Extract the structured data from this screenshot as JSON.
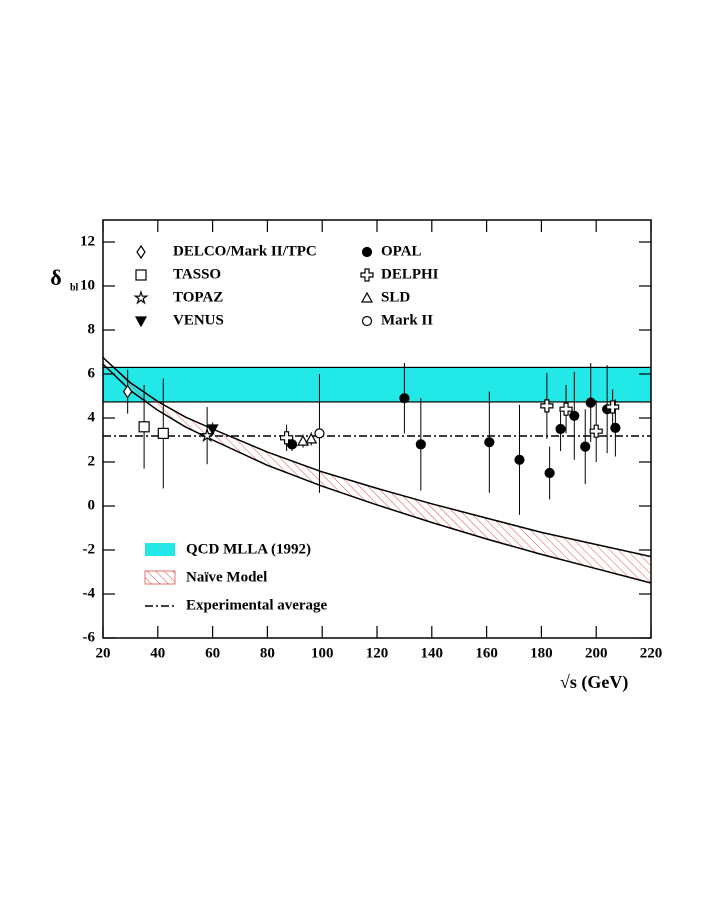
{
  "chart_data": {
    "type": "scatter",
    "x_label": "√s (GeV)",
    "y_label": "δ",
    "y_label_sub": "bl",
    "xlim": [
      20,
      220
    ],
    "ylim": [
      -6,
      13
    ],
    "xticks": [
      20,
      40,
      60,
      80,
      100,
      120,
      140,
      160,
      180,
      200,
      220
    ],
    "yticks": [
      -6,
      -4,
      -2,
      0,
      2,
      4,
      6,
      8,
      10,
      12
    ],
    "series": [
      {
        "name": "DELCO/Mark II/TPC",
        "marker": "diamond",
        "color": "#000000",
        "x": [
          29
        ],
        "values": [
          5.2
        ],
        "errors": [
          1.0
        ]
      },
      {
        "name": "TASSO",
        "marker": "square",
        "color": "#000000",
        "x": [
          35,
          42
        ],
        "values": [
          3.6,
          3.3
        ],
        "errors": [
          1.9,
          2.5
        ]
      },
      {
        "name": "TOPAZ",
        "marker": "star",
        "color": "#000000",
        "x": [
          58
        ],
        "values": [
          3.2
        ],
        "errors": [
          1.3
        ]
      },
      {
        "name": "VENUS",
        "marker": "triangle-down",
        "color": "#000000",
        "x": [
          60
        ],
        "values": [
          3.5
        ],
        "errors": [
          0.3
        ]
      },
      {
        "name": "OPAL",
        "marker": "dot",
        "color": "#000000",
        "x": [
          89,
          130,
          136,
          161,
          172,
          183,
          187,
          192,
          196,
          198,
          204,
          207
        ],
        "values": [
          2.8,
          4.9,
          2.8,
          2.9,
          2.1,
          1.5,
          3.5,
          4.1,
          2.7,
          4.7,
          4.4,
          3.55
        ],
        "errors": [
          0.3,
          1.6,
          2.1,
          2.3,
          2.5,
          1.2,
          1.0,
          2.0,
          1.7,
          1.8,
          2.0,
          1.3
        ]
      },
      {
        "name": "DELPHI",
        "marker": "plus",
        "color": "#000000",
        "x": [
          87,
          182,
          189,
          200,
          206
        ],
        "values": [
          3.1,
          4.55,
          4.4,
          3.4,
          4.5
        ],
        "errors": [
          0.6,
          1.5,
          1.1,
          1.4,
          0.8
        ]
      },
      {
        "name": "SLD",
        "marker": "triangle-up",
        "color": "#000000",
        "x": [
          93,
          96
        ],
        "values": [
          2.95,
          3.05
        ],
        "errors": [
          0.3,
          0.3
        ]
      },
      {
        "name": "Mark II",
        "marker": "circle",
        "color": "#000000",
        "x": [
          99
        ],
        "values": [
          3.3
        ],
        "errors": [
          2.7
        ]
      }
    ],
    "qcd_band": {
      "name": "QCD MLLA (1992)",
      "lower": 4.73,
      "upper": 6.3,
      "color": "#22e8e8"
    },
    "naive_model": {
      "name": "Naïve Model",
      "color": "#e05050",
      "x": [
        20,
        30,
        40,
        50,
        60,
        80,
        100,
        120,
        140,
        160,
        180,
        200,
        220
      ],
      "upper": [
        6.75,
        5.6,
        4.75,
        4.05,
        3.5,
        2.45,
        1.55,
        0.8,
        0.1,
        -0.55,
        -1.2,
        -1.75,
        -2.3
      ],
      "lower": [
        6.45,
        5.25,
        4.35,
        3.6,
        3.0,
        1.85,
        0.9,
        0.05,
        -0.75,
        -1.5,
        -2.2,
        -2.85,
        -3.5
      ]
    },
    "average": {
      "name": "Experimental average",
      "value": 3.18
    }
  }
}
